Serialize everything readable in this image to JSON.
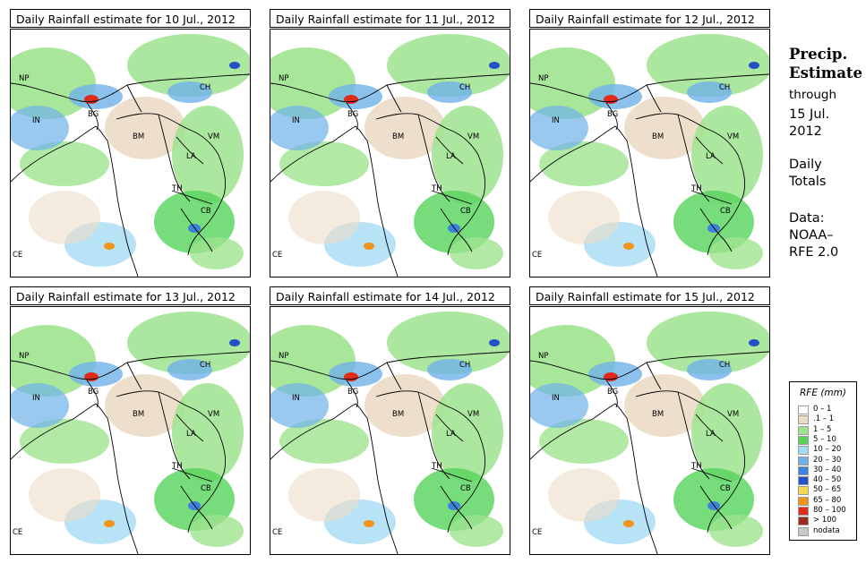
{
  "panels": [
    {
      "title": "Daily Rainfall estimate for  10 Jul., 2012",
      "date": "10 Jul., 2012"
    },
    {
      "title": "Daily Rainfall estimate for  11 Jul., 2012",
      "date": "11 Jul., 2012"
    },
    {
      "title": "Daily Rainfall estimate for  12 Jul., 2012",
      "date": "12 Jul., 2012"
    },
    {
      "title": "Daily Rainfall estimate for  13 Jul., 2012",
      "date": "13 Jul., 2012"
    },
    {
      "title": "Daily Rainfall estimate for  14 Jul., 2012",
      "date": "14 Jul., 2012"
    },
    {
      "title": "Daily Rainfall estimate for  15 Jul., 2012",
      "date": "15 Jul., 2012"
    }
  ],
  "map_labels": {
    "np": "NP",
    "in": "IN",
    "bg": "BG",
    "ch": "CH",
    "bm": "BM",
    "vm": "VM",
    "la": "LA",
    "th": "TH",
    "cb": "CB",
    "ce": "CE"
  },
  "side": {
    "precip_line1": "Precip.",
    "precip_line2": "Estimate",
    "through": "through",
    "date_line1": "15 Jul.",
    "date_line2": "2012",
    "daily_line1": "Daily",
    "daily_line2": "Totals",
    "data_line1": "Data:",
    "data_line2": "NOAA–",
    "data_line3": "RFE 2.0"
  },
  "legend": {
    "title": "RFE (mm)",
    "entries": [
      {
        "label": "0 – 1",
        "color": "#ffffff"
      },
      {
        "label": ".1 – 1",
        "color": "#ecdcc6"
      },
      {
        "label": "1 – 5",
        "color": "#9ee38e"
      },
      {
        "label": "5 – 10",
        "color": "#55d35a"
      },
      {
        "label": "10 – 20",
        "color": "#a6dcf5"
      },
      {
        "label": "20 – 30",
        "color": "#6fb2ea"
      },
      {
        "label": "30 – 40",
        "color": "#3f82dc"
      },
      {
        "label": "40 – 50",
        "color": "#2252c6"
      },
      {
        "label": "50 – 65",
        "color": "#f7d653"
      },
      {
        "label": "65 – 80",
        "color": "#f29419"
      },
      {
        "label": "80 – 100",
        "color": "#e02a1a"
      },
      {
        "label": "> 100",
        "color": "#9a2a1e"
      },
      {
        "label": "nodata",
        "color": "#c8c8c8"
      }
    ]
  }
}
